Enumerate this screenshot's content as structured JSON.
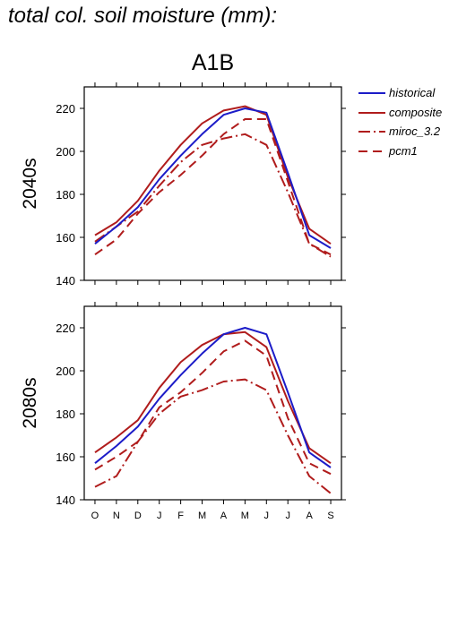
{
  "page": {
    "title": "total col. soil moisture (mm):",
    "scenario": "A1B"
  },
  "colors": {
    "blue": "#1c1cc8",
    "red": "#b01c1c"
  },
  "chart_data": [
    {
      "type": "line",
      "panel_label": "2040s",
      "x": [
        "O",
        "N",
        "D",
        "J",
        "F",
        "M",
        "A",
        "M",
        "J",
        "J",
        "A",
        "S"
      ],
      "ylim": [
        140,
        230
      ],
      "yticks": [
        140,
        160,
        180,
        200,
        220
      ],
      "series": [
        {
          "name": "historical",
          "style": "solid",
          "color": "#1c1cc8",
          "values": [
            157,
            165,
            174,
            187,
            198,
            208,
            217,
            220,
            218,
            190,
            161,
            155
          ]
        },
        {
          "name": "composite",
          "style": "solid",
          "color": "#b01c1c",
          "values": [
            161,
            167,
            177,
            191,
            203,
            213,
            219,
            221,
            217,
            188,
            164,
            157
          ]
        },
        {
          "name": "miroc_3.2",
          "style": "dashdot",
          "color": "#b01c1c",
          "values": [
            158,
            165,
            172,
            184,
            195,
            203,
            206,
            208,
            203,
            181,
            157,
            151
          ]
        },
        {
          "name": "pcm1",
          "style": "dashed",
          "color": "#b01c1c",
          "values": [
            152,
            159,
            171,
            181,
            189,
            198,
            208,
            215,
            215,
            186,
            157,
            152
          ]
        }
      ]
    },
    {
      "type": "line",
      "panel_label": "2080s",
      "x": [
        "O",
        "N",
        "D",
        "J",
        "F",
        "M",
        "A",
        "M",
        "J",
        "J",
        "A",
        "S"
      ],
      "ylim": [
        140,
        230
      ],
      "yticks": [
        140,
        160,
        180,
        200,
        220
      ],
      "series": [
        {
          "name": "historical",
          "style": "solid",
          "color": "#1c1cc8",
          "values": [
            157,
            165,
            174,
            187,
            198,
            208,
            217,
            220,
            217,
            190,
            162,
            155
          ]
        },
        {
          "name": "composite",
          "style": "solid",
          "color": "#b01c1c",
          "values": [
            162,
            169,
            177,
            192,
            204,
            212,
            217,
            218,
            211,
            186,
            164,
            157
          ]
        },
        {
          "name": "miroc_3.2",
          "style": "dashdot",
          "color": "#b01c1c",
          "values": [
            146,
            151,
            167,
            180,
            188,
            191,
            195,
            196,
            191,
            170,
            151,
            143
          ]
        },
        {
          "name": "pcm1",
          "style": "dashed",
          "color": "#b01c1c",
          "values": [
            154,
            160,
            167,
            183,
            190,
            199,
            209,
            214,
            207,
            178,
            157,
            152
          ]
        }
      ]
    }
  ]
}
